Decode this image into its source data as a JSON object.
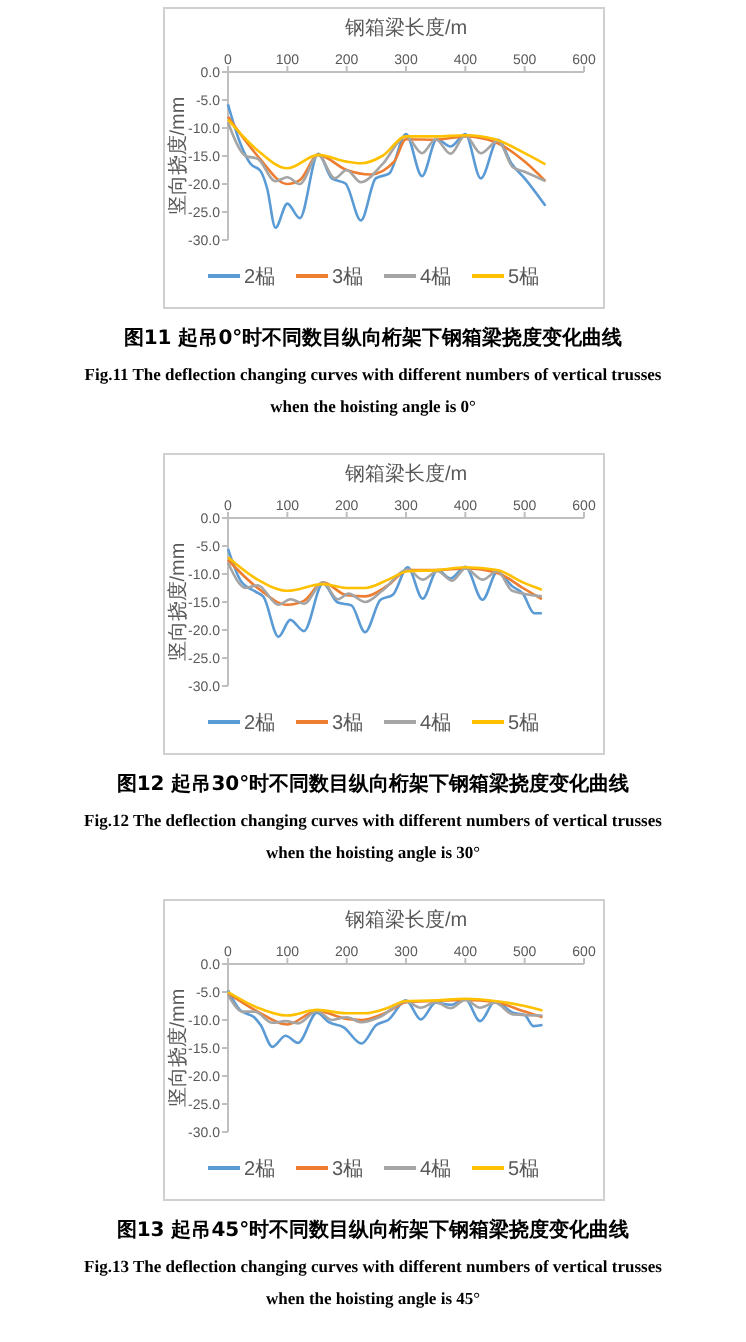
{
  "chart_data": [
    {
      "type": "line",
      "title": "钢箱梁长度/m",
      "ylabel": "竖向挠度/mm",
      "xlim": [
        0,
        600
      ],
      "xticks": [
        0,
        100,
        200,
        300,
        400,
        500,
        600
      ],
      "ylim": [
        -30,
        0
      ],
      "yticks": [
        {
          "value": 0,
          "label": "0.0"
        },
        {
          "value": -5,
          "label": "-5.0"
        },
        {
          "value": -10,
          "label": "-10.0"
        },
        {
          "value": -15,
          "label": "-15.0"
        },
        {
          "value": -20,
          "label": "-20.0"
        },
        {
          "value": -25,
          "label": "-25.0"
        },
        {
          "value": -30,
          "label": "-30.0"
        }
      ],
      "legend": "bottom",
      "line_style": "solid",
      "series": [
        {
          "name": "2榀",
          "color": "#5b9bd5",
          "x": [
            0,
            21,
            38,
            55,
            66,
            80,
            100,
            121,
            152,
            175,
            198,
            224,
            249,
            272,
            300,
            327,
            352,
            375,
            400,
            426,
            455,
            478,
            500,
            535
          ],
          "values": [
            -5.8,
            -12.8,
            -16.4,
            -17.7,
            -20.8,
            -27.8,
            -23.5,
            -26.1,
            -14.6,
            -19,
            -19.9,
            -26.5,
            -19,
            -18.1,
            -11.1,
            -18.6,
            -12,
            -13.3,
            -11.1,
            -19,
            -12.1,
            -16.4,
            -19,
            -23.9
          ]
        },
        {
          "name": "3榀",
          "color": "#ed7d31",
          "x": [
            0,
            50,
            100,
            121,
            152,
            200,
            240,
            280,
            300,
            350,
            400,
            450,
            500,
            535
          ],
          "values": [
            -8,
            -15,
            -20,
            -19.3,
            -14.8,
            -17.5,
            -18.3,
            -16,
            -12,
            -12.1,
            -11.5,
            -12.5,
            -16,
            -19.5
          ]
        },
        {
          "name": "4榀",
          "color": "#a5a5a5",
          "x": [
            0,
            30,
            50,
            80,
            100,
            121,
            152,
            180,
            200,
            224,
            260,
            300,
            327,
            350,
            375,
            400,
            426,
            455,
            480,
            500,
            535
          ],
          "values": [
            -9,
            -15,
            -15.5,
            -19.5,
            -18.8,
            -20,
            -14.8,
            -19,
            -17.5,
            -19.7,
            -16.5,
            -11.5,
            -14.5,
            -12,
            -14.6,
            -11.3,
            -14.5,
            -12.3,
            -17,
            -17.8,
            -19.5
          ]
        },
        {
          "name": "5榀",
          "color": "#ffc000",
          "x": [
            0,
            50,
            100,
            152,
            200,
            224,
            260,
            300,
            350,
            400,
            450,
            500,
            535
          ],
          "values": [
            -8.5,
            -14,
            -17.2,
            -14.8,
            -16,
            -16.3,
            -15,
            -11.5,
            -11.5,
            -11.3,
            -12,
            -14.5,
            -16.5
          ]
        }
      ],
      "annotations": [
        "图11 起吊0°时不同数目纵向桁架下钢箱梁挠度变化曲线",
        "Fig.11 The deflection changing curves with different numbers of vertical trusses when the hoisting angle is 0°"
      ]
    },
    {
      "type": "line",
      "title": "钢箱梁长度/m",
      "ylabel": "竖向挠度/mm",
      "xlim": [
        0,
        600
      ],
      "xticks": [
        0,
        100,
        200,
        300,
        400,
        500,
        600
      ],
      "ylim": [
        -30,
        0
      ],
      "yticks": [
        {
          "value": 0,
          "label": "0.0"
        },
        {
          "value": -5,
          "label": "-5.0"
        },
        {
          "value": -10,
          "label": "-10.0"
        },
        {
          "value": -15,
          "label": "-15.0"
        },
        {
          "value": -20,
          "label": "-20.0"
        },
        {
          "value": -25,
          "label": "-25.0"
        },
        {
          "value": -30,
          "label": "-30.0"
        }
      ],
      "legend": "bottom",
      "line_style": "solid",
      "series": [
        {
          "name": "2榀",
          "color": "#5b9bd5",
          "x": [
            0,
            22,
            47,
            60,
            85,
            105,
            128,
            160,
            185,
            208,
            231,
            257,
            278,
            303,
            328,
            353,
            375,
            400,
            429,
            454,
            479,
            497,
            516,
            529
          ],
          "values": [
            -5.5,
            -11.3,
            -13.2,
            -14.1,
            -21.2,
            -18.2,
            -20.2,
            -11.7,
            -15.1,
            -15.6,
            -20.4,
            -14.6,
            -13.7,
            -8.8,
            -14.4,
            -9.3,
            -10.8,
            -8.7,
            -14.6,
            -9.6,
            -12.2,
            -13.5,
            -17,
            -17
          ]
        },
        {
          "name": "3榀",
          "color": "#ed7d31",
          "x": [
            0,
            50,
            100,
            128,
            160,
            200,
            231,
            270,
            303,
            353,
            400,
            454,
            497,
            529
          ],
          "values": [
            -7.5,
            -12.5,
            -15.5,
            -14.8,
            -11.5,
            -13.8,
            -14,
            -12,
            -9.3,
            -9.3,
            -9,
            -9.8,
            -12.5,
            -14.5
          ]
        },
        {
          "name": "4榀",
          "color": "#a5a5a5",
          "x": [
            0,
            30,
            50,
            85,
            105,
            128,
            160,
            185,
            203,
            231,
            260,
            303,
            328,
            353,
            378,
            400,
            429,
            454,
            479,
            529
          ],
          "values": [
            -8,
            -12.5,
            -12,
            -15.5,
            -14.5,
            -15.3,
            -11.5,
            -14.5,
            -13.5,
            -15,
            -13,
            -9.2,
            -11,
            -9.5,
            -11.2,
            -9,
            -11,
            -9.5,
            -13,
            -14
          ]
        },
        {
          "name": "5榀",
          "color": "#ffc000",
          "x": [
            0,
            50,
            100,
            160,
            200,
            231,
            270,
            303,
            353,
            400,
            454,
            497,
            529
          ],
          "values": [
            -7,
            -11,
            -13,
            -11.8,
            -12.5,
            -12.5,
            -11,
            -9.5,
            -9.3,
            -8.8,
            -9.3,
            -11.5,
            -12.8
          ]
        }
      ],
      "annotations": [
        "图12 起吊30°时不同数目纵向桁架下钢箱梁挠度变化曲线",
        "Fig.12 The deflection changing curves with different numbers of vertical trusses when the hoisting angle is 30°"
      ]
    },
    {
      "type": "line",
      "title": "钢箱梁长度/m",
      "ylabel": "竖向挠度/mm",
      "xlim": [
        0,
        600
      ],
      "xticks": [
        0,
        100,
        200,
        300,
        400,
        500,
        600
      ],
      "ylim": [
        -30,
        0
      ],
      "yticks": [
        {
          "value": 0,
          "label": "0.0"
        },
        {
          "value": -5,
          "label": "-5.0"
        },
        {
          "value": -10,
          "label": "-10.0"
        },
        {
          "value": -15,
          "label": "-15.0"
        },
        {
          "value": -20,
          "label": "-20.0"
        },
        {
          "value": -25,
          "label": "-25.0"
        },
        {
          "value": -30,
          "label": "-30.0"
        }
      ],
      "legend": "bottom",
      "line_style": "solid",
      "series": [
        {
          "name": "2榀",
          "color": "#5b9bd5",
          "x": [
            0,
            20,
            45,
            55,
            75,
            97,
            118,
            150,
            170,
            195,
            225,
            250,
            270,
            300,
            325,
            350,
            375,
            400,
            425,
            450,
            480,
            500,
            515,
            530
          ],
          "values": [
            -4.7,
            -8.2,
            -9.6,
            -10.9,
            -14.8,
            -12.8,
            -14.1,
            -8.7,
            -10.4,
            -11.3,
            -14.2,
            -10.9,
            -10,
            -6.5,
            -9.9,
            -6.9,
            -7.3,
            -6.3,
            -10.2,
            -6.7,
            -8.7,
            -9.1,
            -11.1,
            -10.9
          ]
        },
        {
          "name": "3榀",
          "color": "#ed7d31",
          "x": [
            0,
            50,
            100,
            150,
            200,
            225,
            270,
            300,
            350,
            400,
            450,
            500,
            530
          ],
          "values": [
            -5.2,
            -8.5,
            -10.8,
            -8.4,
            -9.8,
            -10,
            -8.5,
            -6.8,
            -6.6,
            -6.4,
            -6.8,
            -8.5,
            -9.5
          ]
        },
        {
          "name": "4榀",
          "color": "#a5a5a5",
          "x": [
            0,
            25,
            45,
            75,
            97,
            118,
            150,
            175,
            200,
            225,
            255,
            300,
            325,
            350,
            375,
            400,
            425,
            450,
            480,
            530
          ],
          "values": [
            -5.5,
            -8.5,
            -8.5,
            -10.5,
            -10.2,
            -10.6,
            -8.4,
            -10,
            -9.5,
            -10.4,
            -9.5,
            -6.7,
            -7.8,
            -6.8,
            -7.9,
            -6.4,
            -7.8,
            -6.9,
            -9,
            -9.2
          ]
        },
        {
          "name": "5榀",
          "color": "#ffc000",
          "x": [
            0,
            50,
            100,
            150,
            200,
            230,
            270,
            300,
            350,
            400,
            450,
            500,
            530
          ],
          "values": [
            -5,
            -7.8,
            -9.2,
            -8.2,
            -8.8,
            -8.8,
            -7.8,
            -6.6,
            -6.5,
            -6.2,
            -6.6,
            -7.5,
            -8.3
          ]
        }
      ],
      "annotations": [
        "图13 起吊45°时不同数目纵向桁架下钢箱梁挠度变化曲线",
        "Fig.13 The deflection changing curves with different numbers of vertical trusses when the hoisting angle is 45°"
      ]
    }
  ]
}
